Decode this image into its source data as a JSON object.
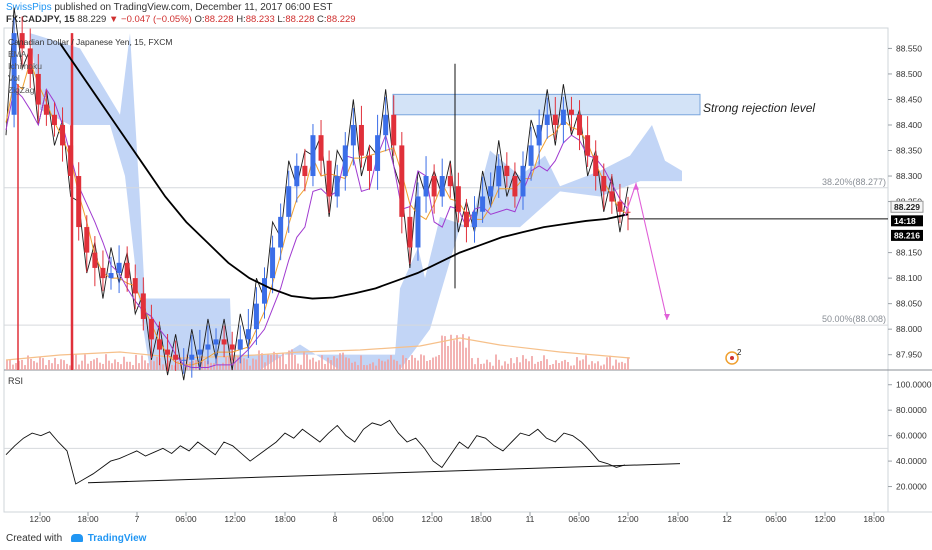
{
  "header": {
    "brand": "SwissPips",
    "published": "published on TradingView.com, December 11, 2017 06:00 EST",
    "symbol": "FX:CADJPY, 15",
    "last": "88.229",
    "change_arrow": "▼",
    "change": "−0.047 (−0.05%)",
    "o_label": "O:",
    "o": "88.228",
    "h_label": "H:",
    "h": "88.233",
    "l_label": "L:",
    "l": "88.228",
    "c_label": "C:",
    "c": "88.229"
  },
  "legend": {
    "title": "Canadian Dollar / Japanese Yen, 15, FXCM",
    "items": [
      "EMA",
      "Ichimoku",
      "Vol",
      "ZigZag"
    ]
  },
  "footer": {
    "created_with": "Created with",
    "brand": "TradingView"
  },
  "chart_data": {
    "type": "candlestick",
    "symbol": "CADJPY",
    "interval": "15",
    "price_ylim": [
      87.92,
      88.59
    ],
    "price_ticks": [
      "88.550",
      "88.500",
      "88.450",
      "88.400",
      "88.350",
      "88.300",
      "88.250",
      "88.150",
      "88.100",
      "88.050",
      "88.000",
      "87.950"
    ],
    "price_tick_values": [
      88.55,
      88.5,
      88.45,
      88.4,
      88.35,
      88.3,
      88.25,
      88.15,
      88.1,
      88.05,
      88.0,
      87.95
    ],
    "price_badges": [
      {
        "text": "88.229",
        "value": 88.229
      },
      {
        "text": "14:18",
        "value": 88.223
      },
      {
        "text": "88.216",
        "value": 88.216
      }
    ],
    "x_ticks": [
      "12:00",
      "18:00",
      "7",
      "06:00",
      "12:00",
      "18:00",
      "8",
      "06:00",
      "12:00",
      "18:00",
      "11",
      "06:00",
      "12:00",
      "18:00",
      "12",
      "06:00",
      "12:00",
      "18:00"
    ],
    "x_tick_x": [
      40,
      88,
      137,
      186,
      235,
      285,
      335,
      383,
      432,
      481,
      530,
      579,
      628,
      678,
      727,
      776,
      825,
      874
    ],
    "rejection_zone": {
      "label": "Strong rejection level",
      "low": 88.42,
      "high": 88.46
    },
    "fib_levels": [
      {
        "label": "38.20%(88.277)",
        "value": 88.277
      },
      {
        "label": "50.00%(88.008)",
        "value": 88.008
      }
    ],
    "support_line_value": 88.216,
    "projection": [
      [
        625,
        88.222
      ],
      [
        636,
        88.285
      ],
      [
        667,
        88.018
      ]
    ],
    "close_series": [
      88.42,
      88.58,
      88.55,
      88.5,
      88.44,
      88.42,
      88.4,
      88.36,
      88.3,
      88.2,
      88.15,
      88.12,
      88.1,
      88.11,
      88.13,
      88.1,
      88.07,
      88.02,
      87.98,
      87.96,
      87.95,
      87.94,
      87.94,
      87.95,
      87.96,
      87.97,
      87.98,
      87.97,
      87.96,
      87.98,
      88.0,
      88.05,
      88.1,
      88.16,
      88.22,
      88.28,
      88.32,
      88.3,
      88.38,
      88.33,
      88.26,
      88.3,
      88.36,
      88.4,
      88.34,
      88.31,
      88.38,
      88.42,
      88.36,
      88.22,
      88.16,
      88.26,
      88.3,
      88.26,
      88.3,
      88.28,
      88.23,
      88.2,
      88.23,
      88.26,
      88.28,
      88.32,
      88.3,
      88.26,
      88.32,
      88.36,
      88.4,
      88.42,
      88.4,
      88.43,
      88.42,
      88.38,
      88.34,
      88.3,
      88.27,
      88.25,
      88.23,
      88.229
    ],
    "ma_series": [
      88.56,
      88.5,
      88.44,
      88.38,
      88.32,
      88.26,
      88.21,
      88.17,
      88.13,
      88.1,
      88.08,
      88.065,
      88.06,
      88.062,
      88.07,
      88.08,
      88.095,
      88.11,
      88.13,
      88.15,
      88.165,
      88.18,
      88.19,
      88.2,
      88.206,
      88.212,
      88.216,
      88.225
    ],
    "vol_ylim": [
      0,
      1
    ],
    "volume_note": "relative volume bars along bottom of price pane",
    "rsi": {
      "label": "RSI",
      "ylim": [
        0,
        110
      ],
      "ticks": [
        "100.0000",
        "80.0000",
        "60.0000",
        "40.0000",
        "20.0000"
      ],
      "tick_values": [
        100,
        80,
        60,
        40,
        20
      ],
      "band_value": 50,
      "series": [
        45,
        52,
        58,
        62,
        60,
        63,
        55,
        48,
        22,
        26,
        30,
        35,
        40,
        42,
        45,
        48,
        44,
        47,
        50,
        46,
        52,
        48,
        55,
        50,
        45,
        55,
        52,
        46,
        40,
        45,
        50,
        55,
        62,
        58,
        65,
        60,
        55,
        62,
        68,
        60,
        55,
        65,
        70,
        68,
        72,
        62,
        55,
        58,
        50,
        40,
        35,
        45,
        55,
        50,
        60,
        58,
        52,
        48,
        55,
        62,
        60,
        65,
        58,
        55,
        62,
        60,
        55,
        48,
        40,
        38,
        35,
        37
      ],
      "trendline": [
        [
          88,
          23
        ],
        [
          680,
          38
        ]
      ]
    },
    "marker_label": "2"
  },
  "colors": {
    "up": "#3b6ee8",
    "down": "#e0303a",
    "ma": "#000000",
    "cloud": "#b7cef4",
    "zigzag": "#1a1a1a",
    "ema": "#f0a030",
    "kijun": "#a03ad0",
    "zone": "#cfe0f7",
    "zone_border": "#6b9bd8",
    "projection": "#e060d8",
    "volume": "#f0a0a0",
    "vol_ma": "#f6c08a"
  }
}
